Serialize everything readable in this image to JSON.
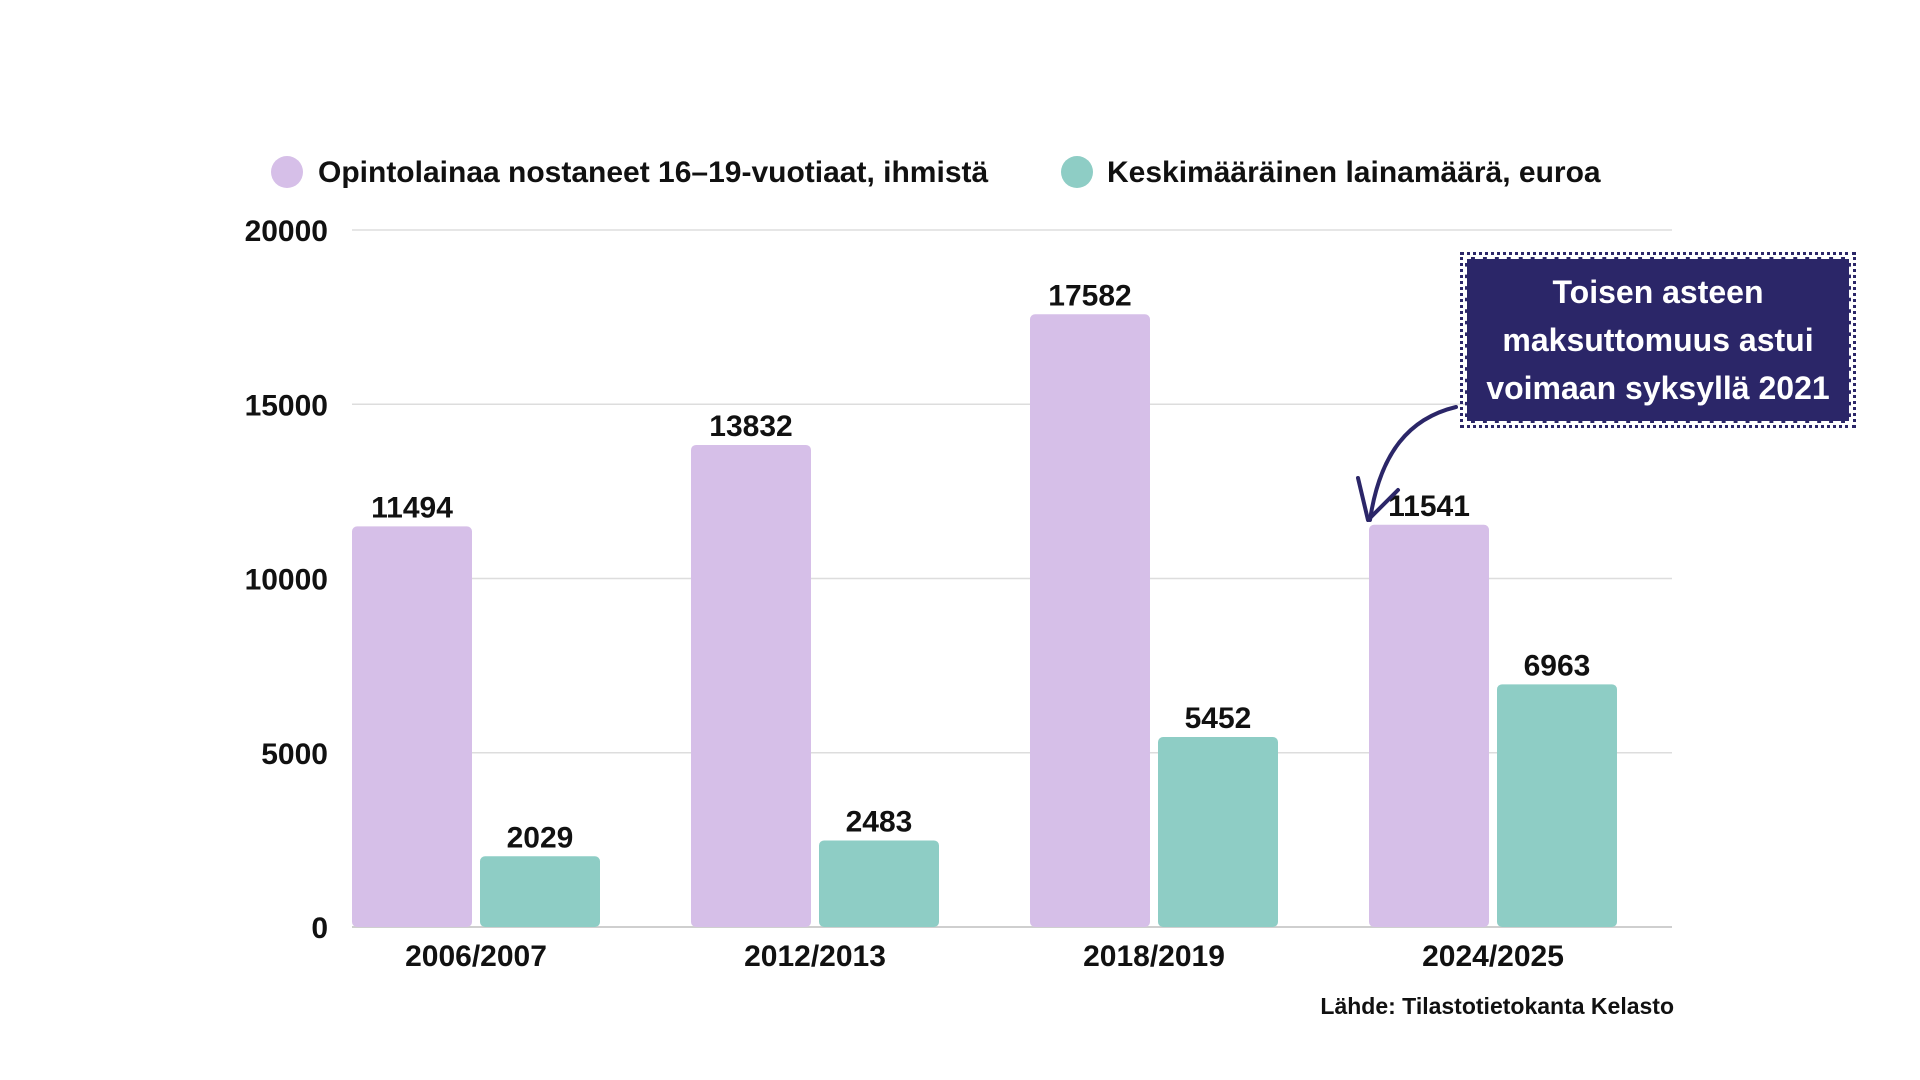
{
  "chart_data": {
    "type": "bar",
    "categories": [
      "2006/2007",
      "2012/2013",
      "2018/2019",
      "2024/2025"
    ],
    "series": [
      {
        "name": "Opintolainaa nostaneet 16–19-vuotiaat, ihmistä",
        "color": "#d6bfe8",
        "values": [
          11494,
          13832,
          17582,
          11541
        ]
      },
      {
        "name": "Keskimääräinen lainamäärä, euroa",
        "color": "#8ecdc5",
        "values": [
          2029,
          2483,
          5452,
          6963
        ]
      }
    ],
    "ylim": [
      0,
      20000
    ],
    "yticks": [
      "0",
      "5000",
      "10000",
      "15000",
      "20000"
    ],
    "grid": true,
    "legend": "top",
    "annotation": "Toisen asteen maksuttomuus astui voimaan syksyllä 2021",
    "source": "Lähde: Tilastotietokanta Kelasto"
  }
}
